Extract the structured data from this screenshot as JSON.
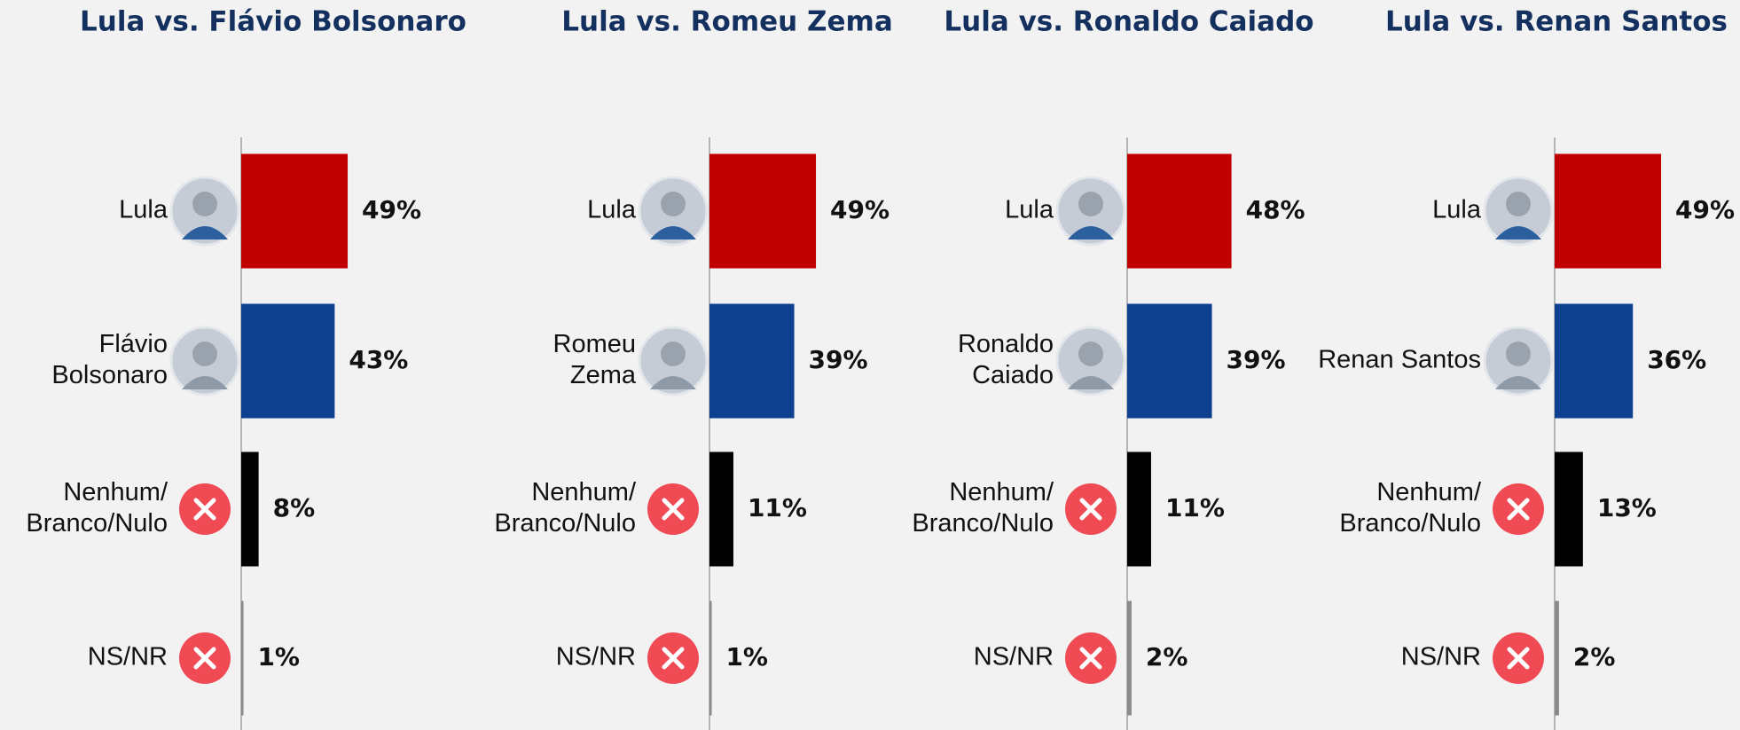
{
  "chart_data": [
    {
      "type": "hbar",
      "title": "Lula vs. Flávio Bolsonaro",
      "categories": [
        "Lula",
        "Flávio\nBolsonaro",
        "Nenhum/\nBranco/Nulo",
        "NS/NR"
      ],
      "values": [
        49,
        43,
        8,
        1
      ],
      "value_labels": [
        "49%",
        "43%",
        "8%",
        "1%"
      ],
      "colors": [
        "#c00000",
        "#0f3f8f",
        "#000000",
        "#8a8a8a"
      ]
    },
    {
      "type": "hbar",
      "title": "Lula vs. Romeu Zema",
      "categories": [
        "Lula",
        "Romeu\nZema",
        "Nenhum/\nBranco/Nulo",
        "NS/NR"
      ],
      "values": [
        49,
        39,
        11,
        1
      ],
      "value_labels": [
        "49%",
        "39%",
        "11%",
        "1%"
      ],
      "colors": [
        "#c00000",
        "#0f3f8f",
        "#000000",
        "#8a8a8a"
      ]
    },
    {
      "type": "hbar",
      "title": "Lula vs. Ronaldo Caiado",
      "categories": [
        "Lula",
        "Ronaldo\nCaiado",
        "Nenhum/\nBranco/Nulo",
        "NS/NR"
      ],
      "values": [
        48,
        39,
        11,
        2
      ],
      "value_labels": [
        "48%",
        "39%",
        "11%",
        "2%"
      ],
      "colors": [
        "#c00000",
        "#0f3f8f",
        "#000000",
        "#8a8a8a"
      ]
    },
    {
      "type": "hbar",
      "title": "Lula vs. Renan Santos",
      "categories": [
        "Lula",
        "Renan Santos",
        "Nenhum/\nBranco/Nulo",
        "NS/NR"
      ],
      "values": [
        49,
        36,
        13,
        2
      ],
      "value_labels": [
        "49%",
        "36%",
        "13%",
        "2%"
      ],
      "colors": [
        "#c00000",
        "#0f3f8f",
        "#000000",
        "#8a8a8a"
      ]
    }
  ]
}
